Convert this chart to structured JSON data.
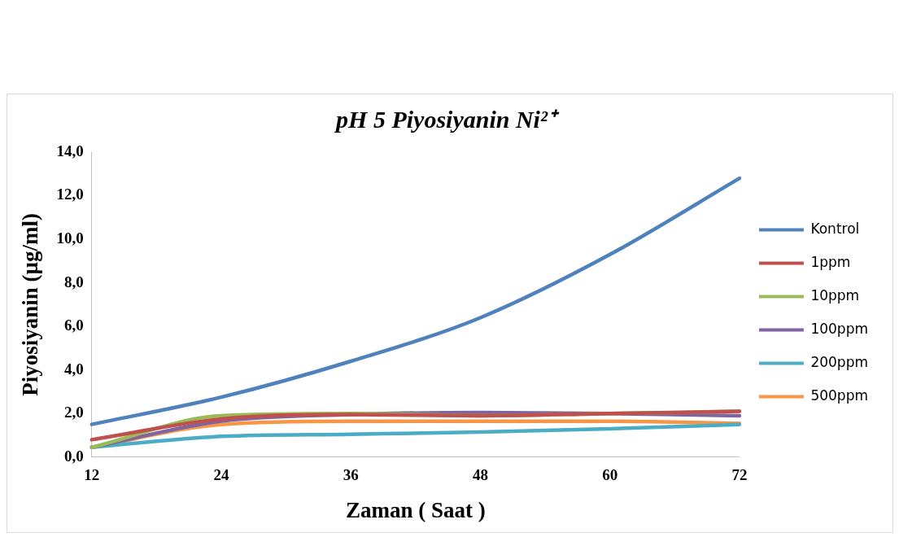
{
  "chart_data": {
    "type": "line",
    "title": "pH 5 Piyosiyanin Ni²⁺",
    "xlabel": "Zaman ( Saat )",
    "ylabel": "Piyosiyanin (µg/ml)",
    "categories": [
      "12",
      "24",
      "36",
      "48",
      "60",
      "72"
    ],
    "ylim": [
      0,
      14
    ],
    "yticks": [
      {
        "value": 0,
        "label": "0,0"
      },
      {
        "value": 2,
        "label": "2,0"
      },
      {
        "value": 4,
        "label": "4,0"
      },
      {
        "value": 6,
        "label": "6,0"
      },
      {
        "value": 8,
        "label": "8,0"
      },
      {
        "value": 10,
        "label": "10,0"
      },
      {
        "value": 12,
        "label": "12,0"
      },
      {
        "value": 14,
        "label": "14,0"
      }
    ],
    "grid": false,
    "legend": "right",
    "marker": "none",
    "line_style": "solid",
    "series": [
      {
        "name": "Kontrol",
        "color": "#4f81bd",
        "values": [
          1.5,
          2.75,
          4.4,
          6.4,
          9.3,
          12.8
        ]
      },
      {
        "name": "1ppm",
        "color": "#c0504d",
        "values": [
          0.8,
          1.75,
          1.95,
          1.9,
          2.0,
          2.1
        ]
      },
      {
        "name": "10ppm",
        "color": "#9bbb59",
        "values": [
          0.45,
          1.9,
          2.0,
          1.9,
          2.0,
          2.1
        ]
      },
      {
        "name": "100ppm",
        "color": "#8064a2",
        "values": [
          0.45,
          1.65,
          1.95,
          2.05,
          2.0,
          1.9
        ]
      },
      {
        "name": "200ppm",
        "color": "#4bacc6",
        "values": [
          0.45,
          0.95,
          1.05,
          1.15,
          1.3,
          1.5
        ]
      },
      {
        "name": "500ppm",
        "color": "#f79646",
        "values": [
          0.45,
          1.5,
          1.65,
          1.65,
          1.65,
          1.55
        ]
      }
    ]
  }
}
